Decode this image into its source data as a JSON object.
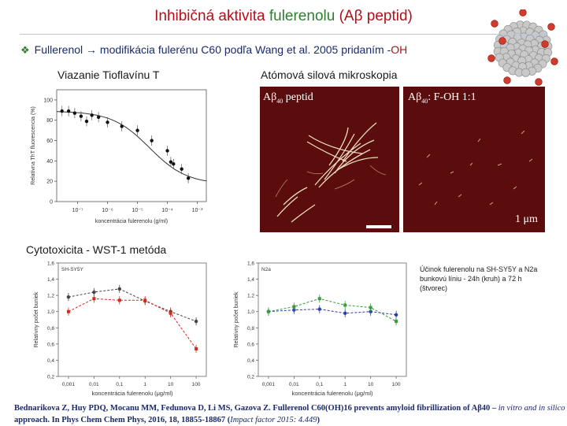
{
  "slide": {
    "title_part1": "Inhibičná aktivita ",
    "title_part2": "fulerenolu",
    "title_part3": " (Aβ peptid)",
    "bullet_text": "Fullerenol → modifikácia fulerénu C60 podľa Wang et al. 2005 pridaním -",
    "bullet_oh": "OH",
    "section_tht": "Viazanie Tioflavínu T",
    "section_afm": "Atómová silová mikroskopia",
    "section_cyto": "Cytotoxicita - WST-1 metóda",
    "afm_left_label_a": "Aβ",
    "afm_left_label_sub": "40",
    "afm_left_label_b": " peptid",
    "afm_right_label_a": "Aβ",
    "afm_right_label_sub": "40",
    "afm_right_label_b": ": F-OH 1:1",
    "scale_label": "1 μm",
    "note": "Účinok fulerenolu na SH-SY5Y a N2a bunkovú líniu - 24h (kruh) a 72 h (štvorec)",
    "citation_main": "Bednarikova Z, Huy PDQ, Mocanu MM, Fedunova D, Li MS, Gazova Z. Fullerenol C60(OH)16 prevents amyloid fibrillization of Aβ40 – ",
    "citation_italic": "in vitro and in silico",
    "citation_line2": "approach. In Phys Chem Chem Phys, 2016, 18, 18855-18867 (",
    "citation_if": "Impact factor 2015: 4.449",
    "citation_end": ")"
  },
  "chart_data": [
    {
      "type": "scatter",
      "ylabel": "Relatívna ThT fluorescencia (%)",
      "xlabel": "koncentrácia fulerenolu (g/ml)",
      "x_scale": "log",
      "xticks": [
        "10⁻⁷",
        "10⁻⁶",
        "10⁻⁵",
        "10⁻⁴",
        "10⁻³"
      ],
      "yticks": [
        "0",
        "20",
        "40",
        "60",
        "80",
        "100"
      ],
      "ylim": [
        0,
        110
      ],
      "x": [
        3e-08,
        5e-08,
        8e-08,
        1.3e-07,
        2e-07,
        3e-07,
        5e-07,
        1e-06,
        3e-06,
        1e-05,
        3e-05,
        0.0001,
        0.00013,
        0.00016,
        0.0003,
        0.0005
      ],
      "y": [
        89,
        89,
        87,
        84,
        79,
        85,
        83,
        78,
        74,
        70,
        60,
        50,
        39,
        37,
        32,
        23
      ]
    },
    {
      "type": "line",
      "panel_label": "SH-SY5Y",
      "ylabel": "Relatívny počet buniek",
      "xlabel": "koncentrácia fulerenolu (μg/ml)",
      "x_scale": "log",
      "xticks": [
        "0,001",
        "0,01",
        "0,1",
        "1",
        "10",
        "100"
      ],
      "yticks": [
        "0,2",
        "0,4",
        "0,6",
        "0,8",
        "1,0",
        "1,2",
        "1,4",
        "1,6"
      ],
      "ylim": [
        0.2,
        1.6
      ],
      "x": [
        0.001,
        0.01,
        0.1,
        1,
        10,
        100
      ],
      "series": [
        {
          "marker": "circle",
          "values": [
            1.18,
            1.24,
            1.28,
            1.13,
            1.0,
            0.88
          ]
        },
        {
          "marker": "square",
          "values": [
            1.0,
            1.16,
            1.14,
            1.14,
            0.98,
            0.54
          ]
        }
      ]
    },
    {
      "type": "line",
      "panel_label": "N2a",
      "ylabel": "Relatívny počet buniek",
      "xlabel": "koncentrácia fulerenolu (μg/ml)",
      "x_scale": "log",
      "xticks": [
        "0,001",
        "0,01",
        "0,1",
        "1",
        "10",
        "100"
      ],
      "yticks": [
        "0,2",
        "0,4",
        "0,6",
        "0,8",
        "1,0",
        "1,2",
        "1,4",
        "1,6"
      ],
      "ylim": [
        0.2,
        1.6
      ],
      "x": [
        0.001,
        0.01,
        0.1,
        1,
        10,
        100
      ],
      "series": [
        {
          "marker": "circle",
          "values": [
            1.0,
            1.02,
            1.03,
            0.98,
            1.0,
            0.96
          ]
        },
        {
          "marker": "square",
          "values": [
            1.0,
            1.06,
            1.16,
            1.08,
            1.05,
            0.88
          ]
        }
      ]
    }
  ],
  "colors": {
    "title": "#b0101a",
    "title_highlight": "#2f7d2f",
    "heading": "#1a2a6c",
    "afm_background": "#5b0d0d",
    "tht_points": "#111111",
    "sh_24h": "#444444",
    "sh_72h": "#d42a1e",
    "n2a_24h": "#2b3fa8",
    "n2a_72h": "#3a9c3a"
  }
}
